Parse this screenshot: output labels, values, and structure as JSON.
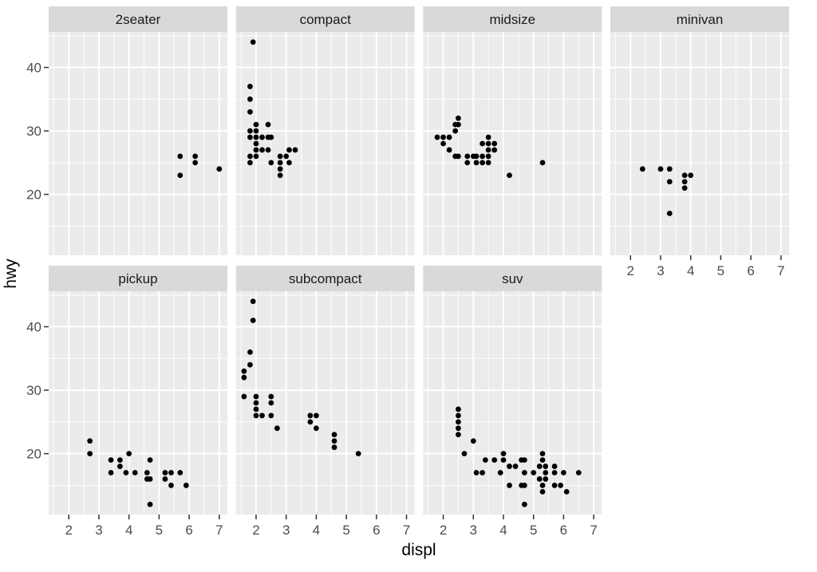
{
  "figure": {
    "title": "",
    "colors": {
      "panel_background": "#ebebeb",
      "strip_background": "#d9d9d9",
      "strip_text": "#1a1a1a",
      "grid": "#ffffff",
      "tick_text": "#4d4d4d",
      "tick_mark": "#333333",
      "point": "#000000",
      "figure_background": "#ffffff"
    }
  },
  "chart_data": {
    "type": "scatter",
    "title": "",
    "xlabel": "displ",
    "ylabel": "hwy",
    "facet_by": "class",
    "legend": "none",
    "grid": "major and minor white gridlines on grey panel",
    "xlim": [
      1.33,
      7.27
    ],
    "ylim": [
      10.4,
      45.6
    ],
    "x_ticks": [
      2,
      3,
      4,
      5,
      6,
      7
    ],
    "x_minor_ticks": [
      1.5,
      2.5,
      3.5,
      4.5,
      5.5,
      6.5
    ],
    "y_ticks": [
      20,
      30,
      40
    ],
    "y_minor_ticks": [
      15,
      25,
      35,
      45
    ],
    "facets": [
      {
        "label": "2seater",
        "row": 0,
        "col": 0,
        "points": [
          [
            5.7,
            26
          ],
          [
            6.2,
            26
          ],
          [
            6.2,
            25
          ],
          [
            7.0,
            24
          ],
          [
            5.7,
            23
          ]
        ]
      },
      {
        "label": "compact",
        "row": 0,
        "col": 1,
        "points": [
          [
            1.9,
            44
          ],
          [
            1.8,
            37
          ],
          [
            1.8,
            35
          ],
          [
            1.8,
            33
          ],
          [
            2.0,
            31
          ],
          [
            2.4,
            31
          ],
          [
            1.8,
            30
          ],
          [
            2.0,
            30
          ],
          [
            1.8,
            29
          ],
          [
            2.0,
            29
          ],
          [
            2.2,
            29
          ],
          [
            2.4,
            29
          ],
          [
            2.5,
            29
          ],
          [
            2.0,
            28
          ],
          [
            2.0,
            27
          ],
          [
            2.2,
            27
          ],
          [
            2.4,
            27
          ],
          [
            3.1,
            27
          ],
          [
            3.3,
            27
          ],
          [
            1.8,
            26
          ],
          [
            2.0,
            26
          ],
          [
            2.8,
            26
          ],
          [
            3.0,
            26
          ],
          [
            1.8,
            25
          ],
          [
            2.5,
            25
          ],
          [
            2.8,
            25
          ],
          [
            3.1,
            25
          ],
          [
            2.8,
            24
          ],
          [
            2.8,
            23
          ]
        ]
      },
      {
        "label": "midsize",
        "row": 0,
        "col": 2,
        "points": [
          [
            2.5,
            32
          ],
          [
            2.4,
            31
          ],
          [
            2.5,
            31
          ],
          [
            2.4,
            30
          ],
          [
            1.8,
            29
          ],
          [
            2.0,
            29
          ],
          [
            2.2,
            29
          ],
          [
            3.5,
            29
          ],
          [
            2.0,
            28
          ],
          [
            3.3,
            28
          ],
          [
            3.5,
            28
          ],
          [
            3.7,
            28
          ],
          [
            2.2,
            27
          ],
          [
            3.5,
            27
          ],
          [
            3.7,
            27
          ],
          [
            2.4,
            26
          ],
          [
            2.5,
            26
          ],
          [
            2.8,
            26
          ],
          [
            3.0,
            26
          ],
          [
            3.1,
            26
          ],
          [
            3.3,
            26
          ],
          [
            3.5,
            26
          ],
          [
            2.8,
            25
          ],
          [
            3.1,
            25
          ],
          [
            3.3,
            25
          ],
          [
            3.5,
            25
          ],
          [
            5.3,
            25
          ],
          [
            4.2,
            23
          ]
        ]
      },
      {
        "label": "minivan",
        "row": 0,
        "col": 3,
        "points": [
          [
            2.4,
            24
          ],
          [
            3.0,
            24
          ],
          [
            3.3,
            24
          ],
          [
            3.8,
            23
          ],
          [
            4.0,
            23
          ],
          [
            3.3,
            22
          ],
          [
            3.8,
            22
          ],
          [
            3.8,
            21
          ],
          [
            3.3,
            17
          ]
        ]
      },
      {
        "label": "pickup",
        "row": 1,
        "col": 0,
        "points": [
          [
            2.7,
            22
          ],
          [
            2.7,
            20
          ],
          [
            4.0,
            20
          ],
          [
            3.4,
            19
          ],
          [
            3.7,
            19
          ],
          [
            4.7,
            19
          ],
          [
            3.7,
            18
          ],
          [
            3.4,
            17
          ],
          [
            3.9,
            17
          ],
          [
            4.2,
            17
          ],
          [
            4.6,
            17
          ],
          [
            5.2,
            17
          ],
          [
            5.4,
            17
          ],
          [
            5.7,
            17
          ],
          [
            4.6,
            16
          ],
          [
            4.7,
            16
          ],
          [
            5.2,
            16
          ],
          [
            5.4,
            15
          ],
          [
            5.9,
            15
          ],
          [
            4.7,
            12
          ]
        ]
      },
      {
        "label": "subcompact",
        "row": 1,
        "col": 1,
        "points": [
          [
            1.9,
            44
          ],
          [
            1.9,
            41
          ],
          [
            1.8,
            36
          ],
          [
            1.8,
            34
          ],
          [
            1.6,
            33
          ],
          [
            1.6,
            32
          ],
          [
            1.6,
            29
          ],
          [
            2.0,
            29
          ],
          [
            2.5,
            29
          ],
          [
            2.0,
            28
          ],
          [
            2.5,
            28
          ],
          [
            2.0,
            27
          ],
          [
            2.0,
            26
          ],
          [
            2.2,
            26
          ],
          [
            2.5,
            26
          ],
          [
            3.8,
            26
          ],
          [
            4.0,
            26
          ],
          [
            3.8,
            25
          ],
          [
            2.7,
            24
          ],
          [
            4.0,
            24
          ],
          [
            4.6,
            23
          ],
          [
            4.6,
            22
          ],
          [
            4.6,
            21
          ],
          [
            5.4,
            20
          ]
        ]
      },
      {
        "label": "suv",
        "row": 1,
        "col": 2,
        "points": [
          [
            2.5,
            27
          ],
          [
            2.5,
            26
          ],
          [
            2.5,
            25
          ],
          [
            2.5,
            24
          ],
          [
            2.5,
            23
          ],
          [
            3.0,
            22
          ],
          [
            2.7,
            20
          ],
          [
            4.0,
            20
          ],
          [
            5.3,
            20
          ],
          [
            3.4,
            19
          ],
          [
            3.7,
            19
          ],
          [
            4.0,
            19
          ],
          [
            4.6,
            19
          ],
          [
            4.7,
            19
          ],
          [
            5.3,
            19
          ],
          [
            4.2,
            18
          ],
          [
            4.4,
            18
          ],
          [
            5.2,
            18
          ],
          [
            5.4,
            18
          ],
          [
            5.7,
            18
          ],
          [
            3.1,
            17
          ],
          [
            3.3,
            17
          ],
          [
            3.9,
            17
          ],
          [
            4.7,
            17
          ],
          [
            5.0,
            17
          ],
          [
            5.4,
            17
          ],
          [
            5.7,
            17
          ],
          [
            6.0,
            17
          ],
          [
            6.5,
            17
          ],
          [
            5.2,
            16
          ],
          [
            5.4,
            16
          ],
          [
            4.2,
            15
          ],
          [
            4.6,
            15
          ],
          [
            4.7,
            15
          ],
          [
            5.3,
            15
          ],
          [
            5.7,
            15
          ],
          [
            5.9,
            15
          ],
          [
            5.3,
            14
          ],
          [
            6.1,
            14
          ],
          [
            4.7,
            12
          ]
        ]
      }
    ]
  }
}
